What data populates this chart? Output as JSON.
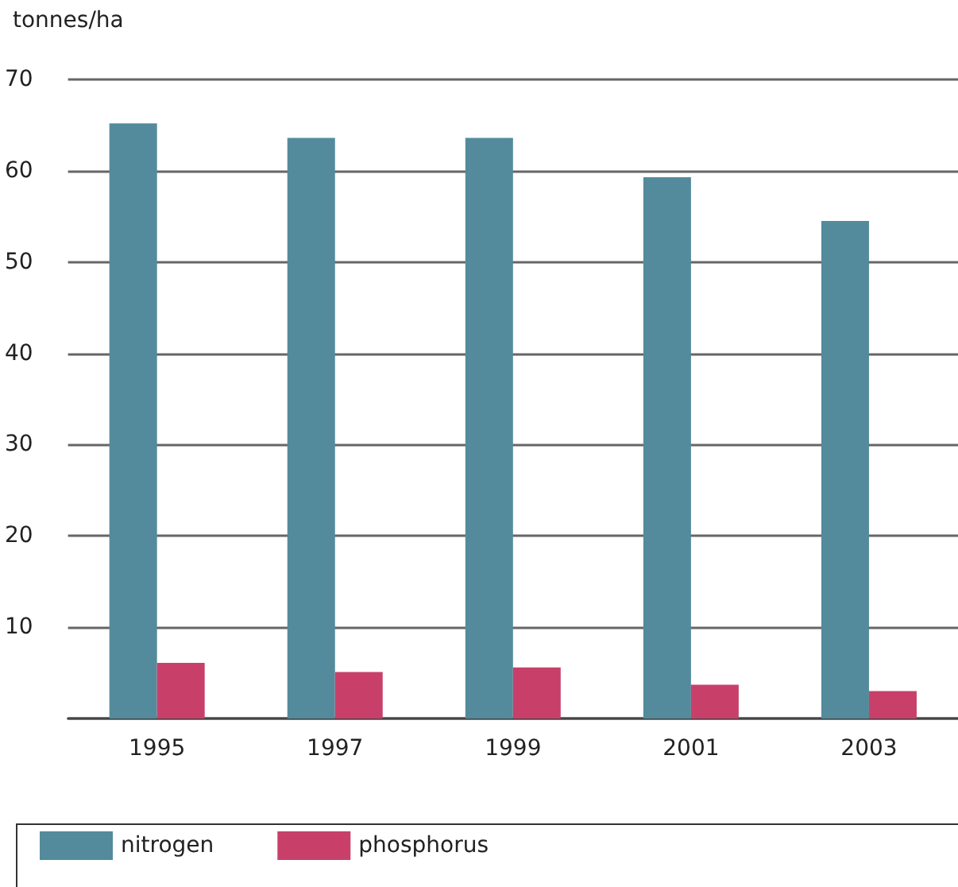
{
  "chart_data": {
    "type": "bar",
    "ylabel": "tonnes/ha",
    "categories": [
      "1995",
      "1997",
      "1999",
      "2001",
      "2003"
    ],
    "series": [
      {
        "name": "nitrogen",
        "color": "#538b9c",
        "values": [
          65.2,
          63.6,
          63.6,
          59.3,
          54.5
        ]
      },
      {
        "name": "phosphorus",
        "color": "#c8406a",
        "values": [
          6.1,
          5.1,
          5.6,
          3.7,
          3.0
        ]
      }
    ],
    "ylim": [
      0,
      70
    ],
    "yticks": [
      {
        "value": 0,
        "label": null
      },
      10,
      20,
      30,
      40,
      50,
      60,
      70
    ],
    "grid": "y",
    "legend": "bottom"
  }
}
